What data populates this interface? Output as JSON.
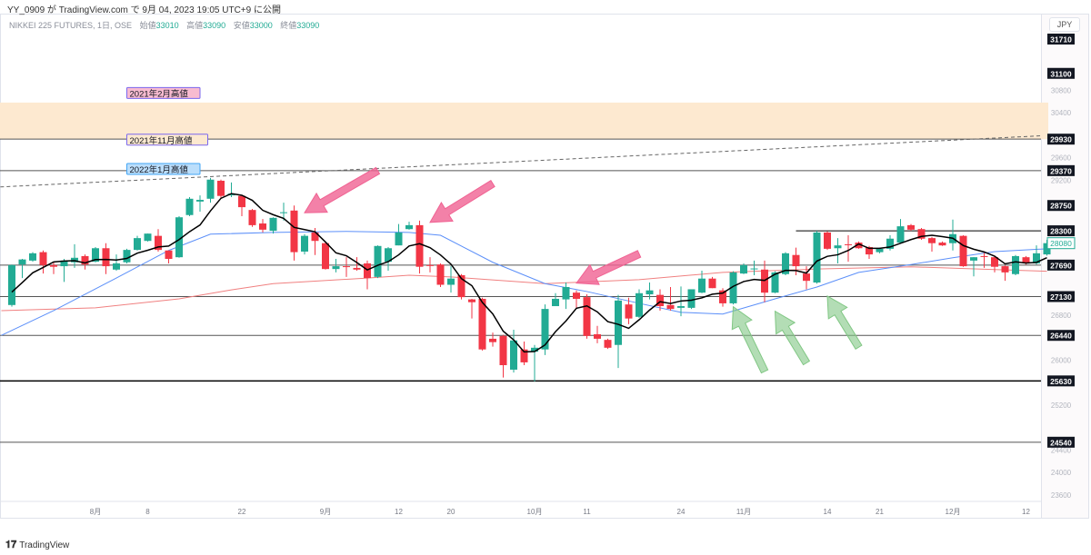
{
  "header": {
    "published": "YY_0909 が TradingView.com で 9月 04, 2023 19:05 UTC+9 に公開",
    "symbol": "NIKKEI 225 FUTURES, 1日, OSE",
    "open_label": "始値",
    "open": "33010",
    "high_label": "高値",
    "high": "33090",
    "low_label": "安値",
    "low": "33000",
    "close_label": "終値",
    "close": "33090"
  },
  "currency_button": "JPY",
  "footer": {
    "brand": "TradingView"
  },
  "colors": {
    "up": "#22ab94",
    "down": "#f23645",
    "ma_short": "#000000",
    "ma_mid": "#5b8ff9",
    "ma_long": "#f08080",
    "zone": "#fde9d0",
    "pink_arrow": "#f06292",
    "green_arrow": "#81c784"
  },
  "chart_data": {
    "type": "candlestick",
    "ylim": [
      23300,
      31900
    ],
    "price_ticks": [
      "30800",
      "30400",
      "29600",
      "29200",
      "26800",
      "26000",
      "25200",
      "24400",
      "24000",
      "23600"
    ],
    "time_labels": [
      {
        "idx": 8,
        "label": "8月"
      },
      {
        "idx": 13,
        "label": "8"
      },
      {
        "idx": 22,
        "label": "22"
      },
      {
        "idx": 30,
        "label": "9月"
      },
      {
        "idx": 37,
        "label": "12"
      },
      {
        "idx": 42,
        "label": "20"
      },
      {
        "idx": 50,
        "label": "10月"
      },
      {
        "idx": 55,
        "label": "11"
      },
      {
        "idx": 64,
        "label": "24"
      },
      {
        "idx": 70,
        "label": "11月"
      },
      {
        "idx": 78,
        "label": "14"
      },
      {
        "idx": 83,
        "label": "21"
      },
      {
        "idx": 90,
        "label": "12月"
      },
      {
        "idx": 97,
        "label": "12"
      }
    ],
    "candles": [
      [
        26980,
        27700,
        26950,
        27690
      ],
      [
        27700,
        27800,
        27460,
        27790
      ],
      [
        27770,
        27920,
        27750,
        27900
      ],
      [
        27920,
        27950,
        27540,
        27690
      ],
      [
        27690,
        27750,
        27530,
        27660
      ],
      [
        27670,
        27800,
        27390,
        27770
      ],
      [
        27740,
        28060,
        27640,
        27820
      ],
      [
        27850,
        27880,
        27610,
        27700
      ],
      [
        27750,
        28010,
        27740,
        27990
      ],
      [
        27990,
        28080,
        27530,
        27670
      ],
      [
        27610,
        27880,
        27590,
        27720
      ],
      [
        27740,
        27980,
        27720,
        27960
      ],
      [
        27960,
        28210,
        27950,
        28170
      ],
      [
        28120,
        28250,
        28110,
        28250
      ],
      [
        28210,
        28330,
        27930,
        27960
      ],
      [
        27950,
        27950,
        27720,
        27800
      ],
      [
        27830,
        28560,
        27820,
        28540
      ],
      [
        28580,
        28900,
        28560,
        28870
      ],
      [
        28820,
        28930,
        28640,
        28850
      ],
      [
        28870,
        29240,
        28800,
        29210
      ],
      [
        29190,
        29210,
        28880,
        28920
      ],
      [
        28930,
        29160,
        28900,
        28960
      ],
      [
        28920,
        28930,
        28560,
        28720
      ],
      [
        28670,
        28690,
        28370,
        28400
      ],
      [
        28430,
        28510,
        28270,
        28320
      ],
      [
        28300,
        28540,
        28250,
        28530
      ],
      [
        28620,
        28800,
        28480,
        28630
      ],
      [
        28660,
        28750,
        27770,
        27920
      ],
      [
        27930,
        28240,
        27880,
        28210
      ],
      [
        28270,
        28350,
        27870,
        28120
      ],
      [
        28080,
        28090,
        27610,
        27620
      ],
      [
        27620,
        27800,
        27560,
        27670
      ],
      [
        27670,
        27830,
        27480,
        27660
      ],
      [
        27640,
        27830,
        27590,
        27610
      ],
      [
        27720,
        27770,
        27260,
        27460
      ],
      [
        27480,
        28040,
        27460,
        28030
      ],
      [
        27750,
        28010,
        27590,
        27990
      ],
      [
        28040,
        28420,
        28040,
        28270
      ],
      [
        28330,
        28460,
        28320,
        28400
      ],
      [
        28400,
        28480,
        27540,
        27660
      ],
      [
        27690,
        27830,
        27560,
        27680
      ],
      [
        27700,
        27720,
        27300,
        27340
      ],
      [
        27340,
        27670,
        27200,
        27450
      ],
      [
        27510,
        27530,
        27080,
        27120
      ],
      [
        27080,
        27090,
        26740,
        27030
      ],
      [
        27090,
        27110,
        26170,
        26190
      ],
      [
        26380,
        26490,
        26240,
        26320
      ],
      [
        26430,
        26450,
        25690,
        25910
      ],
      [
        25830,
        26540,
        25780,
        26350
      ],
      [
        26190,
        26330,
        25910,
        25960
      ],
      [
        26150,
        26270,
        25620,
        26220
      ],
      [
        26190,
        26990,
        26090,
        26910
      ],
      [
        26960,
        27190,
        26960,
        27090
      ],
      [
        27080,
        27380,
        26910,
        27300
      ],
      [
        27200,
        27240,
        26910,
        27090
      ],
      [
        27120,
        27170,
        26380,
        26430
      ],
      [
        26460,
        26610,
        26300,
        26380
      ],
      [
        26360,
        26380,
        26200,
        26220
      ],
      [
        26270,
        27160,
        25860,
        27060
      ],
      [
        26990,
        27110,
        26640,
        26740
      ],
      [
        26770,
        27260,
        26750,
        27190
      ],
      [
        27170,
        27380,
        27080,
        27240
      ],
      [
        27160,
        27260,
        26880,
        26960
      ],
      [
        26980,
        27300,
        26880,
        26910
      ],
      [
        26930,
        27310,
        26780,
        26960
      ],
      [
        26930,
        27260,
        26910,
        27260
      ],
      [
        27200,
        27590,
        27190,
        27450
      ],
      [
        27450,
        27480,
        27280,
        27280
      ],
      [
        27240,
        27280,
        26950,
        27010
      ],
      [
        27010,
        27580,
        26990,
        27560
      ],
      [
        27540,
        27720,
        27530,
        27690
      ],
      [
        27620,
        27770,
        27510,
        27630
      ],
      [
        27610,
        27770,
        27030,
        27200
      ],
      [
        27200,
        27580,
        27190,
        27560
      ],
      [
        27530,
        27920,
        27510,
        27900
      ],
      [
        27870,
        28000,
        27510,
        27670
      ],
      [
        27540,
        27670,
        27260,
        27410
      ],
      [
        27380,
        28300,
        27360,
        28270
      ],
      [
        28270,
        28290,
        27960,
        27980
      ],
      [
        27990,
        28170,
        27720,
        28040
      ],
      [
        28060,
        28220,
        27750,
        28050
      ],
      [
        28090,
        28110,
        27980,
        27990
      ],
      [
        28010,
        28030,
        27800,
        27880
      ],
      [
        27920,
        28000,
        27900,
        27980
      ],
      [
        27980,
        28220,
        27950,
        28160
      ],
      [
        28090,
        28510,
        28080,
        28380
      ],
      [
        28400,
        28420,
        28300,
        28320
      ],
      [
        28330,
        28350,
        28140,
        28160
      ],
      [
        28170,
        28190,
        27930,
        28080
      ],
      [
        28090,
        28110,
        28030,
        28040
      ],
      [
        28080,
        28500,
        27950,
        28240
      ],
      [
        28210,
        28220,
        27660,
        27670
      ],
      [
        27770,
        27830,
        27490,
        27830
      ],
      [
        27850,
        27910,
        27640,
        27840
      ],
      [
        27830,
        27850,
        27560,
        27660
      ],
      [
        27670,
        27690,
        27410,
        27560
      ],
      [
        27530,
        27870,
        27510,
        27850
      ],
      [
        27830,
        27850,
        27700,
        27720
      ],
      [
        27720,
        28040,
        27700,
        27900
      ],
      [
        27880,
        28140,
        27860,
        28080
      ]
    ],
    "ma_short_period": 5,
    "ma_mid": [
      [
        -1,
        26440
      ],
      [
        4,
        26880
      ],
      [
        10,
        27460
      ],
      [
        15,
        27950
      ],
      [
        19,
        28240
      ],
      [
        25,
        28270
      ],
      [
        32,
        28290
      ],
      [
        38,
        28270
      ],
      [
        41,
        28220
      ],
      [
        46,
        27740
      ],
      [
        51,
        27360
      ],
      [
        55,
        27220
      ],
      [
        60,
        27010
      ],
      [
        64,
        26850
      ],
      [
        68,
        26820
      ],
      [
        73,
        27090
      ],
      [
        77,
        27300
      ],
      [
        81,
        27560
      ],
      [
        86,
        27700
      ],
      [
        90,
        27820
      ],
      [
        94,
        27930
      ],
      [
        99,
        27980
      ]
    ],
    "ma_long": [
      [
        -1,
        26880
      ],
      [
        8,
        26930
      ],
      [
        16,
        27090
      ],
      [
        21,
        27250
      ],
      [
        25,
        27360
      ],
      [
        34,
        27460
      ],
      [
        38,
        27510
      ],
      [
        42,
        27480
      ],
      [
        51,
        27360
      ],
      [
        60,
        27430
      ],
      [
        68,
        27560
      ],
      [
        77,
        27620
      ],
      [
        86,
        27660
      ],
      [
        94,
        27610
      ],
      [
        99,
        27580
      ]
    ],
    "levels": [
      {
        "price": 29930,
        "label": "29930",
        "line": true
      },
      {
        "price": 29370,
        "label": "29370",
        "line": true
      },
      {
        "price": 27690,
        "label": "27690",
        "line": true
      },
      {
        "price": 27130,
        "label": "27130",
        "line": true
      },
      {
        "price": 26440,
        "label": "26440",
        "line": true
      },
      {
        "price": 25630,
        "label": "25630",
        "line": true
      },
      {
        "price": 24540,
        "label": "24540",
        "line": true
      },
      {
        "price": 28300,
        "label": "28300",
        "line": true,
        "from_idx": 75
      },
      {
        "price": 31710,
        "label": "31710",
        "line": false
      },
      {
        "price": 31100,
        "label": "31100",
        "line": false
      },
      {
        "price": 28750,
        "label": "28750",
        "line": false
      }
    ],
    "last_price": {
      "price": 28080,
      "label": "28080"
    },
    "zone": {
      "top": 30580,
      "bottom": 29930
    },
    "trendline": {
      "start": [
        -1.1,
        29080
      ],
      "end": [
        98.5,
        29990
      ]
    },
    "annotations": [
      {
        "text": "2021年2月高値",
        "price": 30750,
        "idx": 11,
        "bg": "#f8bbd0",
        "border": "#7b68ee"
      },
      {
        "text": "2021年11月高値",
        "price": 29920,
        "idx": 11,
        "bg": "#fde9d0",
        "border": "#7b68ee"
      },
      {
        "text": "2022年1月高値",
        "price": 29400,
        "idx": 11,
        "bg": "#bbdefb",
        "border": "#42a5f5"
      }
    ],
    "arrows": [
      {
        "color": "pink",
        "from": [
          35,
          29370
        ],
        "to": [
          28,
          28620
        ]
      },
      {
        "color": "pink",
        "from": [
          46,
          29140
        ],
        "to": [
          40,
          28450
        ]
      },
      {
        "color": "pink",
        "from": [
          60,
          27890
        ],
        "to": [
          54,
          27370
        ]
      },
      {
        "color": "green",
        "from": [
          72,
          25800
        ],
        "to": [
          69,
          26950
        ]
      },
      {
        "color": "green",
        "from": [
          76,
          25950
        ],
        "to": [
          73,
          26870
        ]
      },
      {
        "color": "green",
        "from": [
          81,
          26230
        ],
        "to": [
          78,
          27140
        ]
      }
    ]
  }
}
